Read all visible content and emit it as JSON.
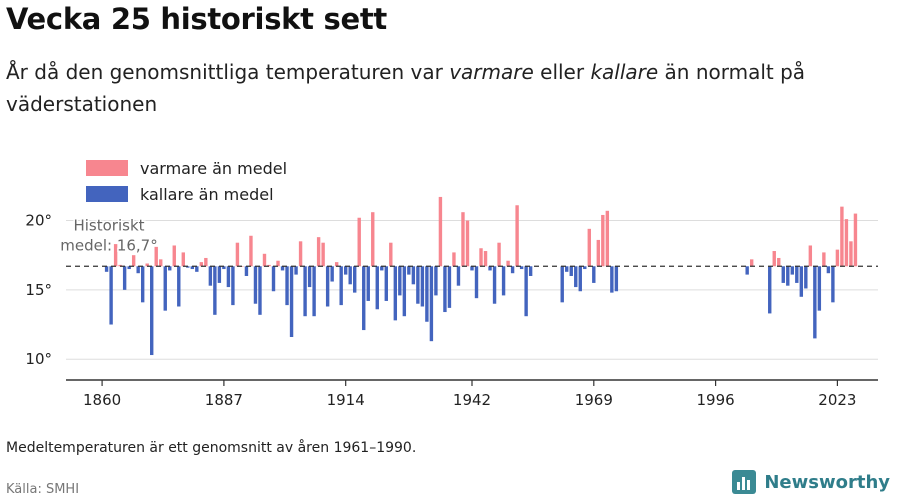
{
  "title": "Vecka 25 historiskt sett",
  "subtitle": {
    "part1": "År då den genomsnittliga temperaturen var ",
    "warm_word": "varmare",
    "part2": " eller ",
    "cold_word": "kallare",
    "part3": " än normalt på väderstationen"
  },
  "footnote": "Medeltemperaturen är ett genomsnitt av åren 1961–1990.",
  "source": "Källa: SMHI",
  "brand": "Newsworthy",
  "colors": {
    "warm": "#f7868f",
    "cold": "#4364be",
    "reference": "#333333",
    "grid": "#dddddd",
    "axis": "#333333"
  },
  "chart_data": {
    "type": "bar",
    "title": "Vecka 25 historiskt sett",
    "xlabel": "",
    "ylabel": "",
    "baseline": 16.7,
    "baseline_label_line1": "Historiskt",
    "baseline_label_line2": "medel: 16,7°",
    "ylim": [
      8.5,
      22.2
    ],
    "xlim": [
      1852,
      2032
    ],
    "y_ticks": [
      10,
      15,
      20
    ],
    "y_tick_labels": [
      "10°",
      "15°",
      "20°"
    ],
    "x_ticks": [
      1860,
      1887,
      1914,
      1942,
      1969,
      1996,
      2023
    ],
    "legend": [
      {
        "name": "varmare än medel",
        "color": "#f7868f"
      },
      {
        "name": "kallare än medel",
        "color": "#4364be"
      }
    ],
    "legend_position": "top-left",
    "series": [
      {
        "name": "temperatur",
        "values": [
          [
            1861,
            16.3
          ],
          [
            1862,
            12.5
          ],
          [
            1863,
            18.3
          ],
          [
            1864,
            16.8
          ],
          [
            1865,
            15.0
          ],
          [
            1866,
            16.5
          ],
          [
            1867,
            17.5
          ],
          [
            1868,
            16.2
          ],
          [
            1869,
            14.1
          ],
          [
            1870,
            16.9
          ],
          [
            1871,
            10.3
          ],
          [
            1872,
            18.1
          ],
          [
            1873,
            17.2
          ],
          [
            1874,
            13.5
          ],
          [
            1875,
            16.4
          ],
          [
            1876,
            18.2
          ],
          [
            1877,
            13.8
          ],
          [
            1878,
            17.7
          ],
          [
            1879,
            16.6
          ],
          [
            1880,
            16.5
          ],
          [
            1881,
            16.3
          ],
          [
            1882,
            17.0
          ],
          [
            1883,
            17.3
          ],
          [
            1884,
            15.3
          ],
          [
            1885,
            13.2
          ],
          [
            1886,
            15.5
          ],
          [
            1887,
            16.5
          ],
          [
            1888,
            15.2
          ],
          [
            1889,
            13.9
          ],
          [
            1890,
            18.4
          ],
          [
            1891,
            16.7
          ],
          [
            1892,
            16.0
          ],
          [
            1893,
            18.9
          ],
          [
            1894,
            14.0
          ],
          [
            1895,
            13.2
          ],
          [
            1896,
            17.6
          ],
          [
            1897,
            16.8
          ],
          [
            1898,
            14.9
          ],
          [
            1899,
            17.1
          ],
          [
            1900,
            16.4
          ],
          [
            1901,
            13.9
          ],
          [
            1902,
            11.6
          ],
          [
            1903,
            16.1
          ],
          [
            1904,
            18.5
          ],
          [
            1905,
            13.1
          ],
          [
            1906,
            15.2
          ],
          [
            1907,
            13.1
          ],
          [
            1908,
            18.8
          ],
          [
            1909,
            18.4
          ],
          [
            1910,
            13.8
          ],
          [
            1911,
            15.6
          ],
          [
            1912,
            17.0
          ],
          [
            1913,
            13.9
          ],
          [
            1914,
            16.1
          ],
          [
            1915,
            15.4
          ],
          [
            1916,
            14.8
          ],
          [
            1917,
            20.2
          ],
          [
            1918,
            12.1
          ],
          [
            1919,
            14.2
          ],
          [
            1920,
            20.6
          ],
          [
            1921,
            13.6
          ],
          [
            1922,
            16.4
          ],
          [
            1923,
            14.2
          ],
          [
            1924,
            18.4
          ],
          [
            1925,
            12.8
          ],
          [
            1926,
            14.6
          ],
          [
            1927,
            13.1
          ],
          [
            1928,
            16.1
          ],
          [
            1929,
            15.4
          ],
          [
            1930,
            14.0
          ],
          [
            1931,
            13.8
          ],
          [
            1932,
            12.7
          ],
          [
            1933,
            11.3
          ],
          [
            1934,
            14.6
          ],
          [
            1935,
            21.7
          ],
          [
            1936,
            13.4
          ],
          [
            1937,
            13.7
          ],
          [
            1938,
            17.7
          ],
          [
            1939,
            15.3
          ],
          [
            1940,
            20.6
          ],
          [
            1941,
            20.0
          ],
          [
            1942,
            16.4
          ],
          [
            1943,
            14.4
          ],
          [
            1944,
            18.0
          ],
          [
            1945,
            17.8
          ],
          [
            1946,
            16.4
          ],
          [
            1947,
            14.0
          ],
          [
            1948,
            18.4
          ],
          [
            1949,
            14.6
          ],
          [
            1950,
            17.1
          ],
          [
            1951,
            16.2
          ],
          [
            1952,
            21.1
          ],
          [
            1953,
            16.5
          ],
          [
            1954,
            13.1
          ],
          [
            1955,
            16.0
          ]
        ]
      },
      {
        "name": "temperatur-2",
        "values": [
          [
            1962,
            14.1
          ],
          [
            1963,
            16.3
          ],
          [
            1964,
            16.0
          ],
          [
            1965,
            15.2
          ],
          [
            1966,
            14.9
          ],
          [
            1967,
            16.5
          ],
          [
            1968,
            19.4
          ],
          [
            1969,
            15.5
          ],
          [
            1970,
            18.6
          ],
          [
            1971,
            20.4
          ],
          [
            1972,
            20.7
          ],
          [
            1973,
            14.8
          ],
          [
            1974,
            14.9
          ],
          [
            2003,
            16.1
          ],
          [
            2004,
            17.2
          ],
          [
            2008,
            13.3
          ],
          [
            2009,
            17.8
          ],
          [
            2010,
            17.3
          ],
          [
            2011,
            15.5
          ],
          [
            2012,
            15.3
          ],
          [
            2013,
            16.1
          ],
          [
            2014,
            15.5
          ],
          [
            2015,
            14.5
          ],
          [
            2016,
            15.1
          ],
          [
            2017,
            18.2
          ],
          [
            2018,
            11.5
          ],
          [
            2019,
            13.5
          ],
          [
            2020,
            17.7
          ],
          [
            2021,
            16.2
          ],
          [
            2022,
            14.1
          ],
          [
            2023,
            17.9
          ],
          [
            2024,
            21.0
          ],
          [
            2025,
            20.1
          ],
          [
            2026,
            18.5
          ],
          [
            2027,
            20.5
          ]
        ]
      }
    ]
  }
}
